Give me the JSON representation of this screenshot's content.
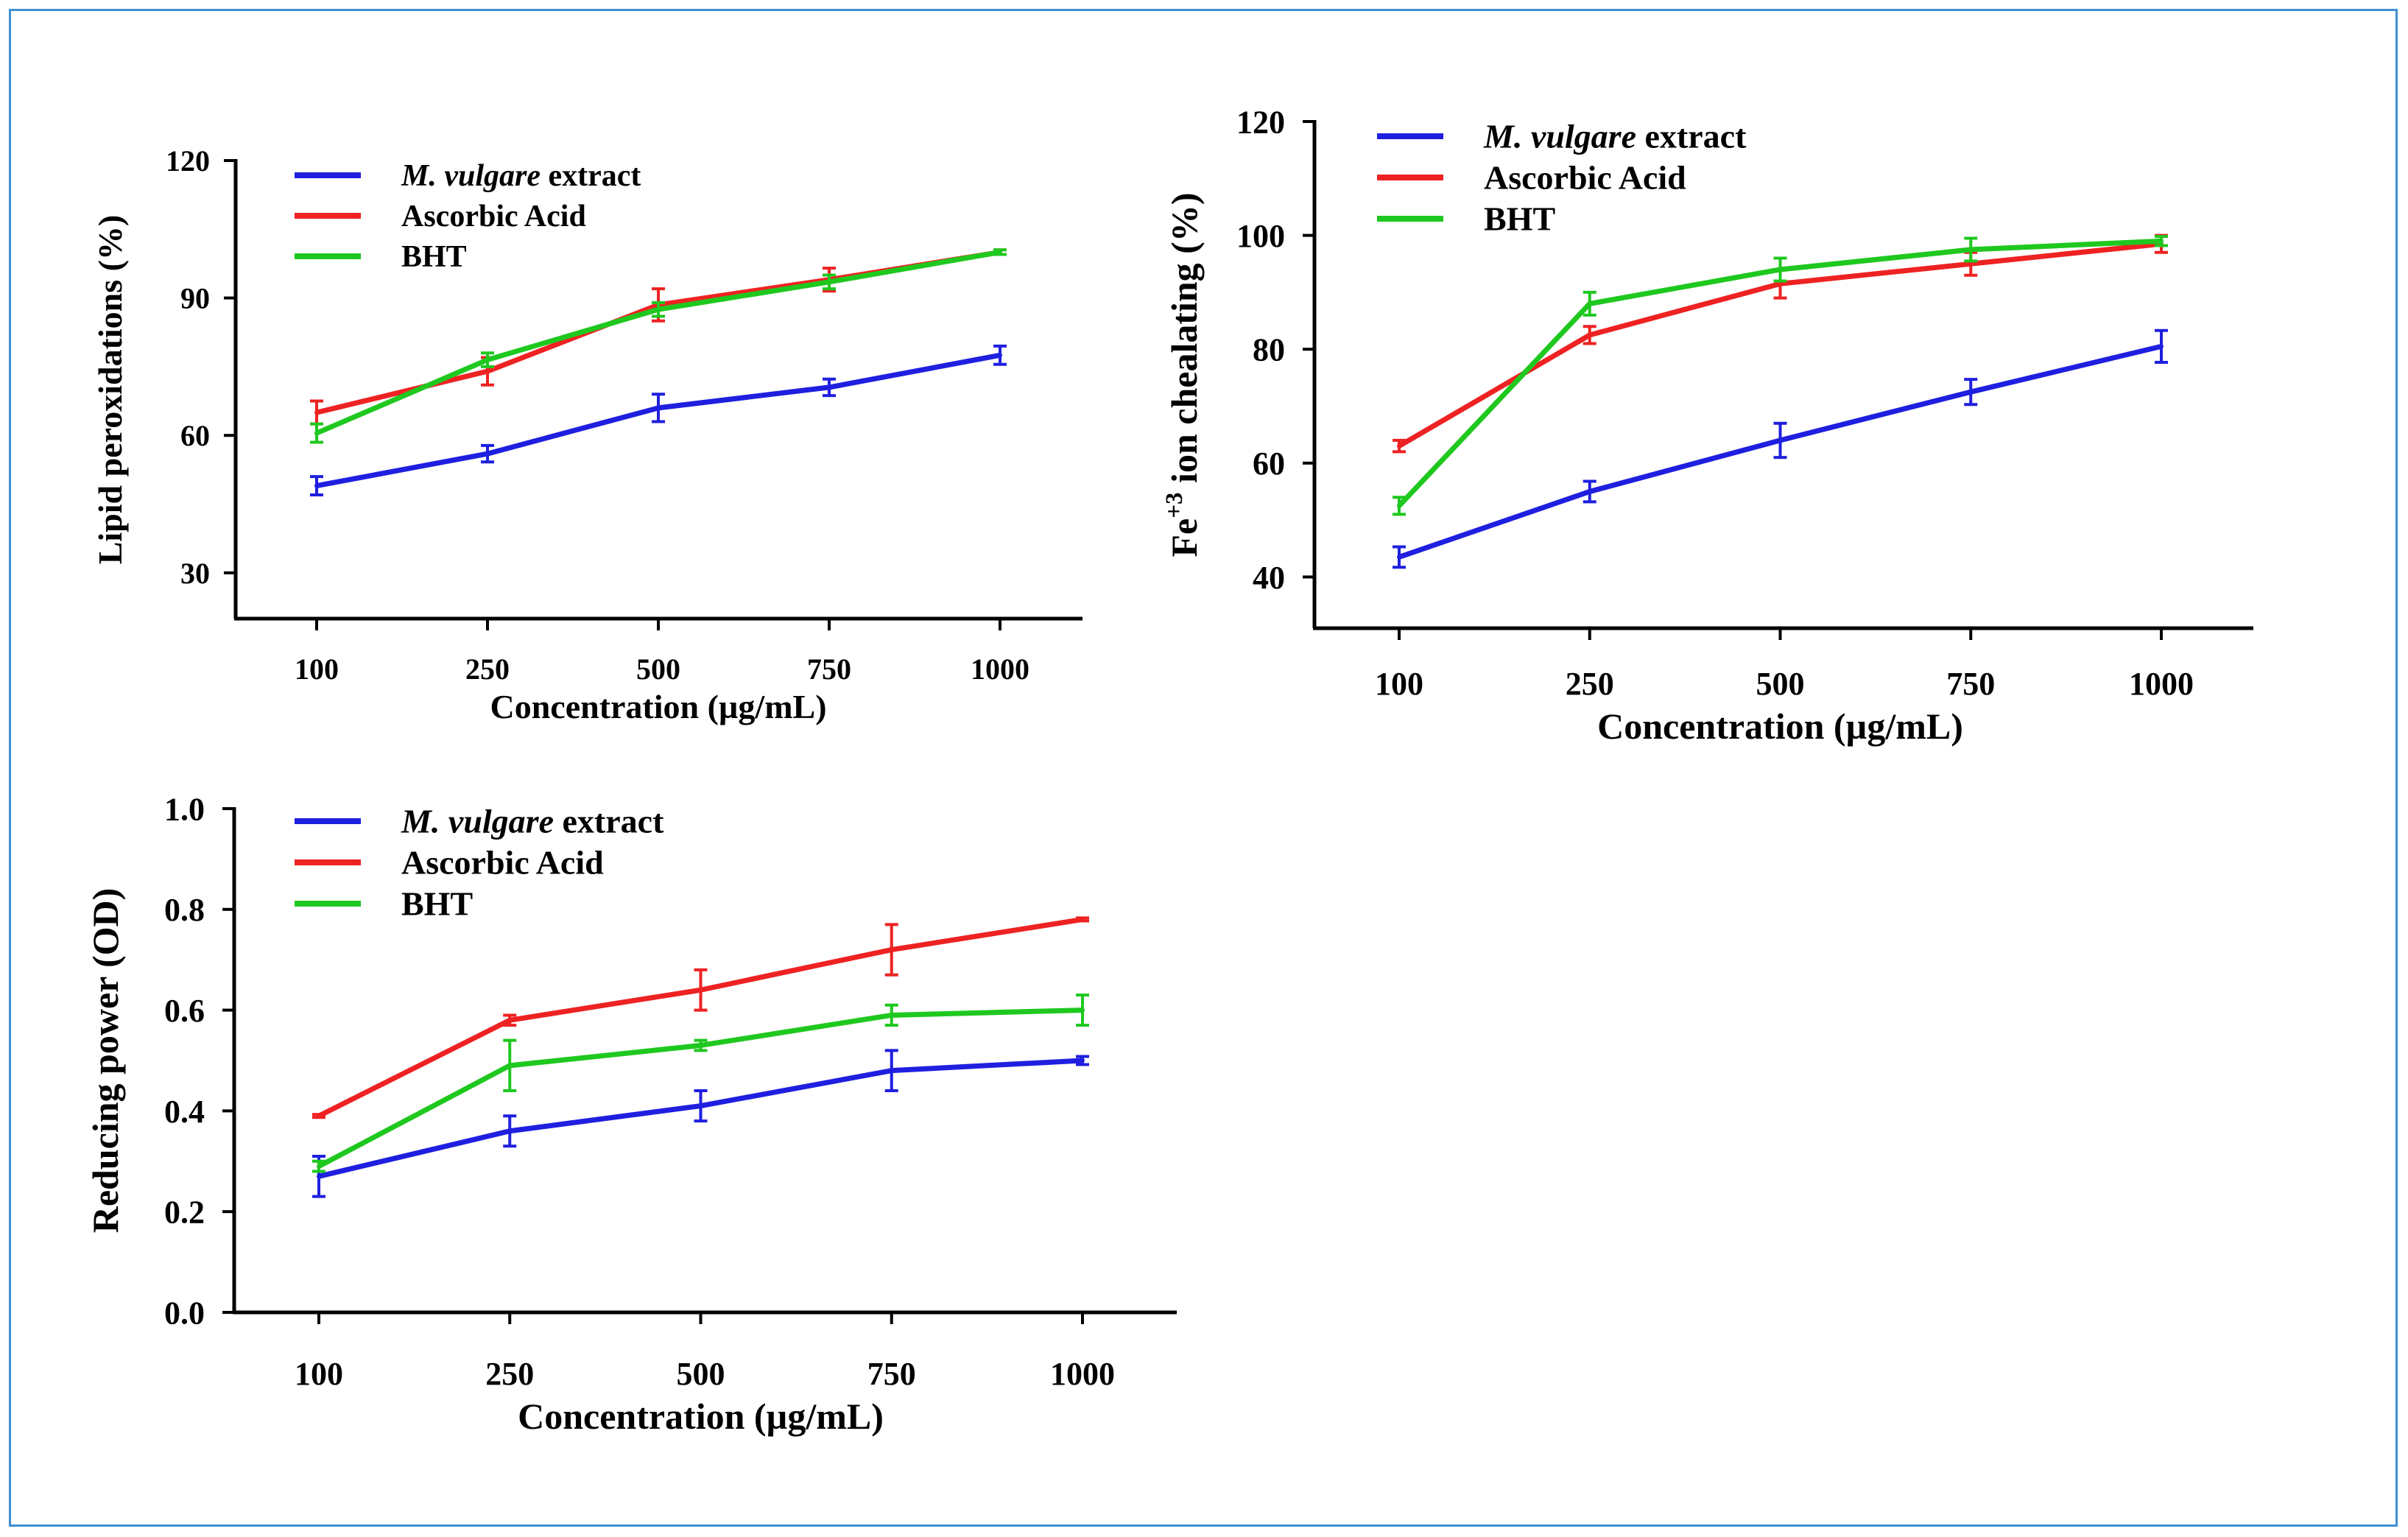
{
  "colors": {
    "series_1": "#1f1fe0",
    "series_2": "#ee2222",
    "series_3": "#1fc81f",
    "frame": "#3f8fd2"
  },
  "chart_data": [
    {
      "type": "line",
      "xlabel": "Concentration (µg/mL)",
      "ylabel": "Lipid peroxidations (%)",
      "categories": [
        "100",
        "250",
        "500",
        "750",
        "1000"
      ],
      "ylim": [
        20,
        120
      ],
      "yticks": [
        "30",
        "60",
        "90",
        "120"
      ],
      "ytick_values": [
        30,
        60,
        90,
        120
      ],
      "legend_location": "top-left",
      "series": [
        {
          "name_italic": "M. vulgare",
          "name": " extract",
          "color": "#1f1fe0",
          "values": [
            49,
            56,
            66,
            70.5,
            77.5
          ],
          "errors": [
            2,
            1.8,
            3,
            1.8,
            2
          ]
        },
        {
          "name": "Ascorbic Acid",
          "color": "#ee2222",
          "values": [
            65,
            74,
            88.5,
            94,
            100
          ],
          "errors": [
            2.5,
            3,
            3.5,
            2.5,
            0.5
          ]
        },
        {
          "name": "BHT",
          "color": "#1fc81f",
          "values": [
            60.5,
            76.5,
            87.5,
            93.5,
            100
          ],
          "errors": [
            2,
            1.5,
            1.5,
            1.5,
            0.5
          ]
        }
      ]
    },
    {
      "type": "line",
      "xlabel": "Concentration (µg/mL)",
      "ylabel_base": "Fe",
      "ylabel_sup": "+3",
      "ylabel_rest": " ion  chealating (%)",
      "categories": [
        "100",
        "250",
        "500",
        "750",
        "1000"
      ],
      "ylim": [
        31,
        120
      ],
      "yticks": [
        "40",
        "60",
        "80",
        "100",
        "120"
      ],
      "ytick_values": [
        40,
        60,
        80,
        100,
        120
      ],
      "legend_location": "top-left",
      "series": [
        {
          "name_italic": "M. vulgare",
          "name": " extract",
          "color": "#1f1fe0",
          "values": [
            43.5,
            55,
            64,
            72.5,
            80.5
          ],
          "errors": [
            1.8,
            1.8,
            3,
            2.2,
            2.8
          ]
        },
        {
          "name": "Ascorbic Acid",
          "color": "#ee2222",
          "values": [
            63,
            82.5,
            91.5,
            95,
            98.5
          ],
          "errors": [
            1,
            1.5,
            2.5,
            2,
            1.5
          ]
        },
        {
          "name": "BHT",
          "color": "#1fc81f",
          "values": [
            52.5,
            88,
            94,
            97.5,
            99
          ],
          "errors": [
            1.5,
            2,
            2,
            2,
            0.8
          ]
        }
      ]
    },
    {
      "type": "line",
      "xlabel": "Concentration (µg/mL)",
      "ylabel": "Reducing power (OD)",
      "categories": [
        "100",
        "250",
        "500",
        "750",
        "1000"
      ],
      "ylim": [
        0,
        1.0
      ],
      "yticks": [
        "0.0",
        "0.2",
        "0.4",
        "0.6",
        "0.8",
        "1.0"
      ],
      "ytick_values": [
        0,
        0.2,
        0.4,
        0.6,
        0.8,
        1.0
      ],
      "legend_location": "top-left",
      "series": [
        {
          "name_italic": "M. vulgare",
          "name": " extract",
          "color": "#1f1fe0",
          "values": [
            0.27,
            0.36,
            0.41,
            0.48,
            0.5
          ],
          "errors": [
            0.04,
            0.03,
            0.03,
            0.04,
            0.008
          ]
        },
        {
          "name": "Ascorbic Acid",
          "color": "#ee2222",
          "values": [
            0.39,
            0.58,
            0.64,
            0.72,
            0.78
          ],
          "errors": [
            0.003,
            0.01,
            0.04,
            0.05,
            0.003
          ]
        },
        {
          "name": "BHT",
          "color": "#1fc81f",
          "values": [
            0.29,
            0.49,
            0.53,
            0.59,
            0.6
          ],
          "errors": [
            0.01,
            0.05,
            0.01,
            0.02,
            0.03
          ]
        }
      ]
    }
  ]
}
